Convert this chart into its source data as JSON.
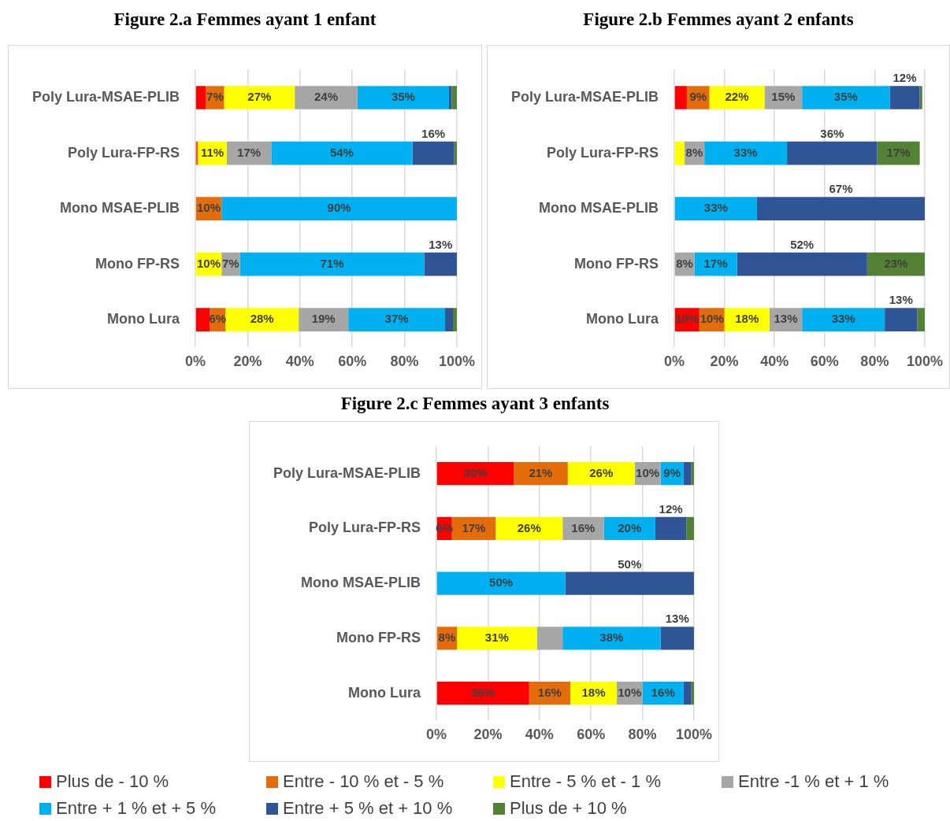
{
  "chart_data": [
    {
      "type": "bar",
      "orientation": "horizontal",
      "stacked": true,
      "title": "Figure 2.a Femmes ayant 1 enfant",
      "categories": [
        "Poly Lura-MSAE-PLIB",
        "Poly Lura-FP-RS",
        "Mono MSAE-PLIB",
        "Mono FP-RS",
        "Mono Lura"
      ],
      "xlim": [
        0,
        100
      ],
      "xticks": [
        {
          "value": 0,
          "label": "0%"
        },
        {
          "value": 20,
          "label": "20%"
        },
        {
          "value": 40,
          "label": "40%"
        },
        {
          "value": 60,
          "label": "60%"
        },
        {
          "value": 80,
          "label": "80%"
        },
        {
          "value": 100,
          "label": "100%"
        }
      ],
      "grid": "x",
      "legend": false,
      "series": [
        {
          "color": "#ff0000",
          "values": [
            4,
            0.5,
            0,
            0,
            5.5
          ],
          "value_labels": [
            null,
            null,
            null,
            null,
            null
          ]
        },
        {
          "color": "#e46c0a",
          "values": [
            7,
            0.5,
            10,
            0,
            6
          ],
          "value_labels": [
            "7%",
            null,
            "10%",
            null,
            "6%"
          ]
        },
        {
          "color": "#ffff00",
          "values": [
            27,
            11,
            0,
            10,
            28
          ],
          "value_labels": [
            "27%",
            "11%",
            null,
            "10%",
            "28%"
          ]
        },
        {
          "color": "#a6a6a6",
          "values": [
            24,
            17,
            0,
            7,
            19
          ],
          "value_labels": [
            "24%",
            "17%",
            null,
            "7%",
            "19%"
          ]
        },
        {
          "color": "#00b0f0",
          "values": [
            35,
            54,
            90,
            70.5,
            37
          ],
          "value_labels": [
            "35%",
            "54%",
            "90%",
            "71%",
            "37%"
          ]
        },
        {
          "color": "#2f5597",
          "values": [
            1,
            16,
            0,
            12.5,
            3
          ],
          "value_labels": [
            null,
            "16%",
            null,
            "13%",
            null
          ]
        },
        {
          "color": "#548235",
          "values": [
            2,
            1,
            0,
            0,
            1.5
          ],
          "value_labels": [
            null,
            null,
            null,
            null,
            null
          ]
        }
      ]
    },
    {
      "type": "bar",
      "orientation": "horizontal",
      "stacked": true,
      "title": "Figure 2.b Femmes ayant 2 enfants",
      "categories": [
        "Poly Lura-MSAE-PLIB",
        "Poly Lura-FP-RS",
        "Mono MSAE-PLIB",
        "Mono FP-RS",
        "Mono Lura"
      ],
      "xlim": [
        0,
        100
      ],
      "xticks": [
        {
          "value": 0,
          "label": "0%"
        },
        {
          "value": 20,
          "label": "20%"
        },
        {
          "value": 40,
          "label": "40%"
        },
        {
          "value": 60,
          "label": "60%"
        },
        {
          "value": 80,
          "label": "80%"
        },
        {
          "value": 100,
          "label": "100%"
        }
      ],
      "grid": "x",
      "legend": false,
      "series": [
        {
          "color": "#ff0000",
          "values": [
            5,
            0,
            0,
            0,
            10
          ],
          "value_labels": [
            null,
            null,
            null,
            null,
            "10%"
          ]
        },
        {
          "color": "#e46c0a",
          "values": [
            9,
            0,
            0,
            0,
            10
          ],
          "value_labels": [
            "9%",
            null,
            null,
            null,
            "10%"
          ]
        },
        {
          "color": "#ffff00",
          "values": [
            22,
            4,
            0,
            0,
            18
          ],
          "value_labels": [
            "22%",
            null,
            null,
            null,
            "18%"
          ]
        },
        {
          "color": "#a6a6a6",
          "values": [
            15,
            8,
            0,
            8,
            13
          ],
          "value_labels": [
            "15%",
            "8%",
            null,
            "8%",
            "13%"
          ]
        },
        {
          "color": "#00b0f0",
          "values": [
            35,
            33,
            33,
            17,
            33
          ],
          "value_labels": [
            "35%",
            "33%",
            "33%",
            "17%",
            "33%"
          ]
        },
        {
          "color": "#2f5597",
          "values": [
            12,
            36,
            67,
            52,
            13
          ],
          "value_labels": [
            "12%",
            "36%",
            "67%",
            "52%",
            "13%"
          ]
        },
        {
          "color": "#548235",
          "values": [
            1,
            17,
            0,
            23,
            3
          ],
          "value_labels": [
            null,
            "17%",
            null,
            "23%",
            null
          ]
        }
      ]
    },
    {
      "type": "bar",
      "orientation": "horizontal",
      "stacked": true,
      "title": "Figure 2.c Femmes ayant 3 enfants",
      "categories": [
        "Poly Lura-MSAE-PLIB",
        "Poly Lura-FP-RS",
        "Mono MSAE-PLIB",
        "Mono FP-RS",
        "Mono Lura"
      ],
      "xlim": [
        0,
        100
      ],
      "xticks": [
        {
          "value": 0,
          "label": "0%"
        },
        {
          "value": 20,
          "label": "20%"
        },
        {
          "value": 40,
          "label": "40%"
        },
        {
          "value": 60,
          "label": "60%"
        },
        {
          "value": 80,
          "label": "80%"
        },
        {
          "value": 100,
          "label": "100%"
        }
      ],
      "grid": "x",
      "legend": "bottom",
      "series": [
        {
          "name": "Plus de - 10 %",
          "color": "#ff0000",
          "values": [
            30,
            6,
            0,
            0,
            36
          ],
          "value_labels": [
            "30%",
            "6%",
            null,
            null,
            "36%"
          ]
        },
        {
          "name": "Entre - 10 % et - 5 %",
          "color": "#e46c0a",
          "values": [
            21,
            17,
            0,
            8,
            16
          ],
          "value_labels": [
            "21%",
            "17%",
            null,
            "8%",
            "16%"
          ]
        },
        {
          "name": "Entre - 5 % et - 1 %",
          "color": "#ffff00",
          "values": [
            26,
            26,
            0,
            31,
            18
          ],
          "value_labels": [
            "26%",
            "26%",
            null,
            "31%",
            "18%"
          ]
        },
        {
          "name": "Entre -1 % et + 1 %",
          "color": "#a6a6a6",
          "values": [
            10,
            16,
            0,
            10,
            10
          ],
          "value_labels": [
            "10%",
            "16%",
            null,
            null,
            "10%"
          ]
        },
        {
          "name": "Entre + 1 % et + 5 %",
          "color": "#00b0f0",
          "values": [
            9,
            20,
            50,
            38,
            16
          ],
          "value_labels": [
            "9%",
            "20%",
            "50%",
            "38%",
            "16%"
          ]
        },
        {
          "name": "Entre + 5 % et + 10 %",
          "color": "#2f5597",
          "values": [
            3,
            12,
            50,
            13,
            3
          ],
          "value_labels": [
            null,
            "12%",
            "50%",
            "13%",
            null
          ]
        },
        {
          "name": "Plus de + 10 %",
          "color": "#548235",
          "values": [
            1,
            3,
            0,
            0,
            1
          ],
          "value_labels": [
            null,
            null,
            null,
            null,
            null
          ]
        }
      ]
    }
  ]
}
